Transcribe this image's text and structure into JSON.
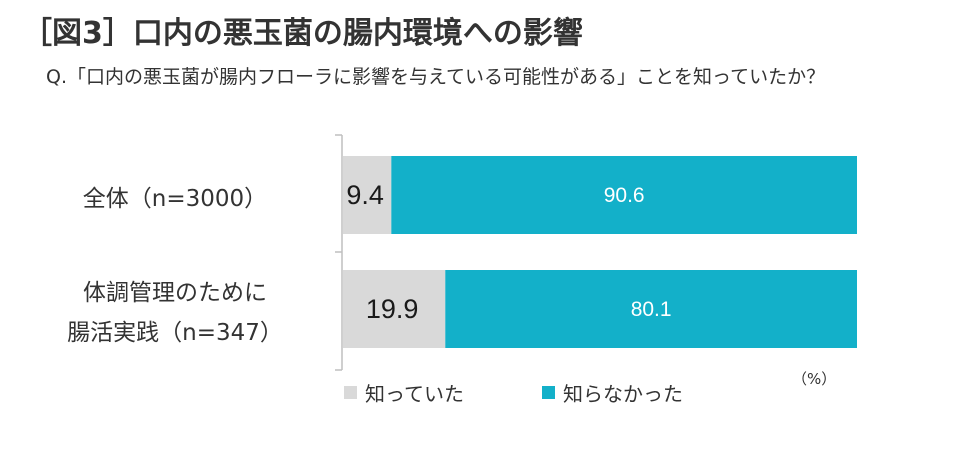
{
  "title": "［図3］口内の悪玉菌の腸内環境への影響",
  "question": "Q.「口内の悪玉菌が腸内フローラに影響を与えている可能性がある」ことを知っていたか？",
  "unit": "（%）",
  "colors": {
    "known": "#d9d9d9",
    "unknown": "#13b0c9"
  },
  "chart_data": {
    "type": "bar",
    "orientation": "horizontal",
    "stacked": true,
    "normalized_100": true,
    "xlim": [
      0,
      100
    ],
    "categories": [
      {
        "lines": [
          "全体（n=3000）"
        ]
      },
      {
        "lines": [
          "体調管理のために",
          "腸活実践（n=347）"
        ]
      }
    ],
    "series": [
      {
        "name": "知っていた",
        "values": [
          9.4,
          19.9
        ],
        "labels": [
          "9.4",
          "19.9"
        ]
      },
      {
        "name": "知らなかった",
        "values": [
          90.6,
          80.1
        ],
        "labels": [
          "90.6",
          "80.1"
        ]
      }
    ],
    "legend_position": "bottom",
    "grid": false
  }
}
